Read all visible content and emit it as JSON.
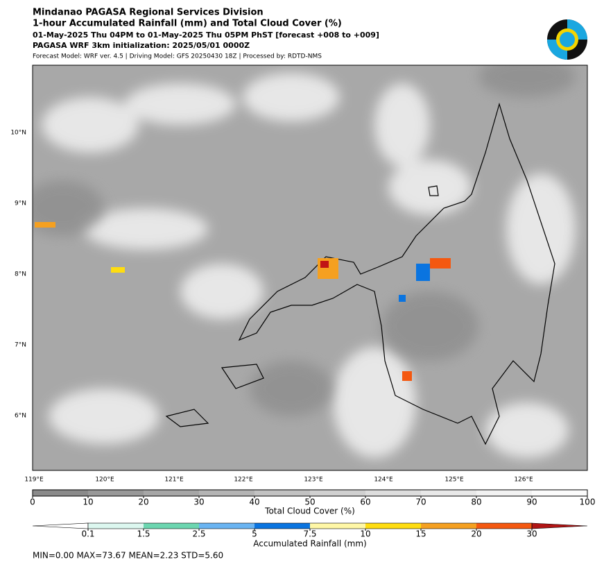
{
  "header": {
    "line1": "Mindanao PAGASA Regional Services Division",
    "line2": "1-hour Accumulated Rainfall (mm) and Total Cloud Cover (%)",
    "line3": "01-May-2025 Thu 04PM to 01-May-2025 Thu 05PM PhST [forecast +008 to +009]",
    "line4": "PAGASA WRF 3km initialization: 2025/05/01 0000Z",
    "line5": "Forecast Model: WRF ver. 4.5 | Driving Model: GFS 20250430 18Z | Processed by: RDTD-NMS"
  },
  "map": {
    "lat_labels": [
      "10°N",
      "9°N",
      "8°N",
      "7°N",
      "6°N"
    ],
    "lon_labels": [
      "119°E",
      "120°E",
      "121°E",
      "122°E",
      "123°E",
      "124°E",
      "125°E",
      "126°E"
    ]
  },
  "cloud_colorbar": {
    "label": "Total Cloud Cover (%)",
    "ticks": [
      0,
      10,
      20,
      30,
      40,
      50,
      60,
      70,
      80,
      90,
      100
    ],
    "colors": [
      "#8a8a8a",
      "#989898",
      "#a6a6a6",
      "#b4b4b4",
      "#c2c2c2",
      "#d0d0d0",
      "#dddddd",
      "#e8e8e8",
      "#f2f2f2",
      "#fbfbfb"
    ]
  },
  "rain_colorbar": {
    "label": "Accumulated Rainfall (mm)",
    "ticks": [
      0.1,
      1.5,
      2.5,
      5,
      7.5,
      10,
      15,
      20,
      30
    ],
    "colors": [
      "#ffffff",
      "#dcf7ef",
      "#6cd6b0",
      "#6ab4f2",
      "#0a74e0",
      "#fff7a6",
      "#ffdd10",
      "#f5a020",
      "#f45810",
      "#b01515"
    ]
  },
  "stats": "MIN=0.00   MAX=73.67   MEAN=2.23   STD=5.60"
}
